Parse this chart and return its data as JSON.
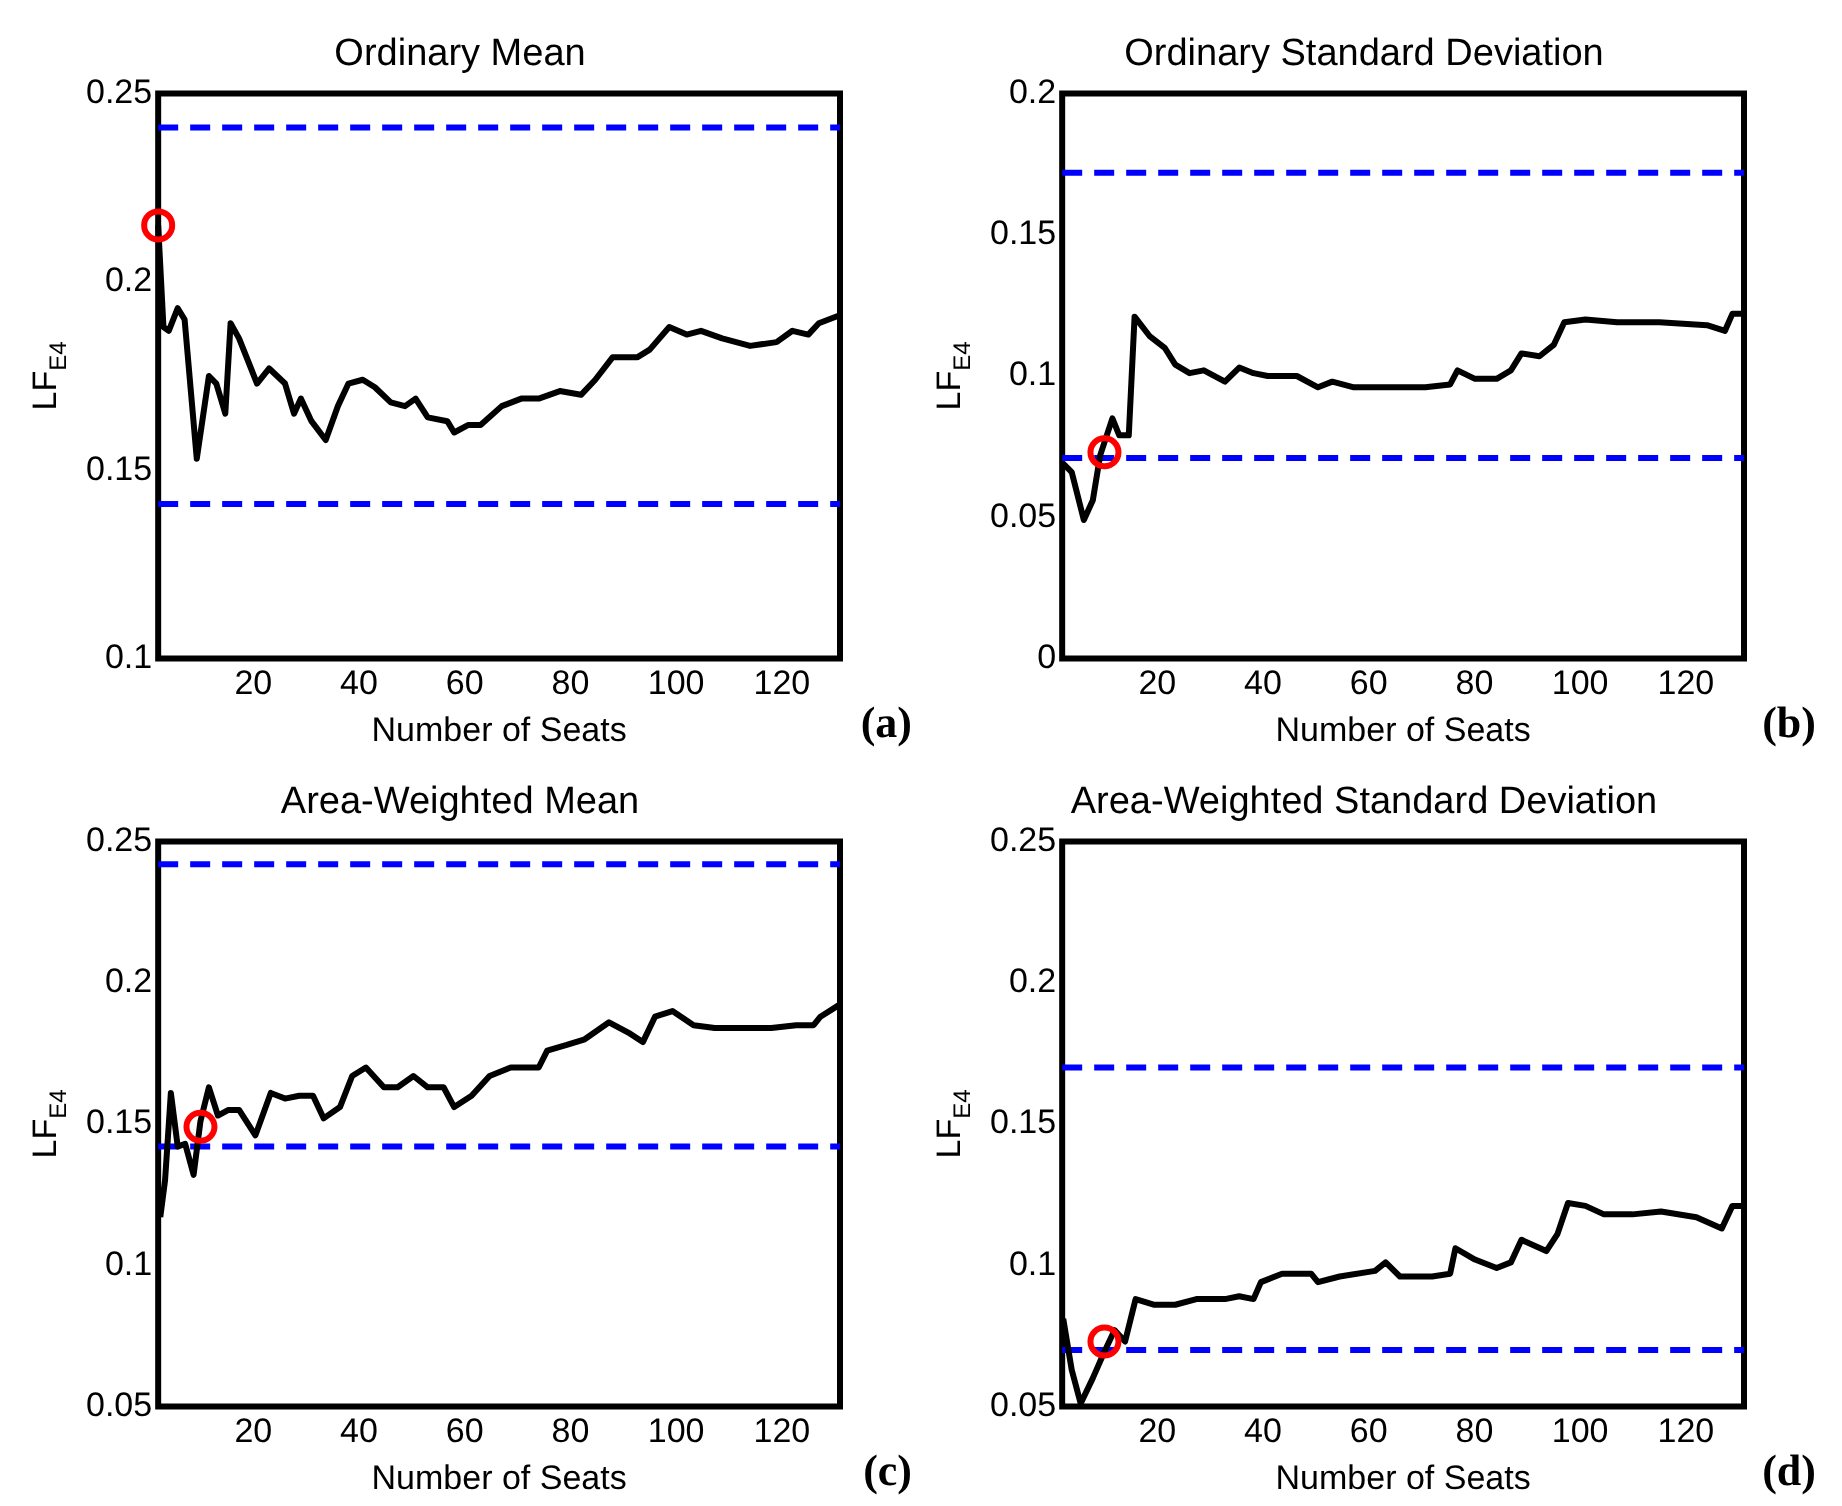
{
  "chart_data": [
    {
      "type": "line",
      "title": "Ordinary Mean",
      "xlabel": "Number of Seats",
      "ylabel": "LF$_{E4}$",
      "annotations": [
        "(a)"
      ],
      "xlim": [
        2,
        131
      ],
      "xticks": [
        20,
        40,
        60,
        80,
        100,
        120
      ],
      "ylim": [
        0.1,
        0.25
      ],
      "yticks": [
        0.1,
        0.15,
        0.2,
        0.25
      ],
      "grid": false,
      "legend": false,
      "line_style": "solid",
      "ref_lines": [
        {
          "axis": "y",
          "value": 0.241,
          "color": "#0000ff",
          "line_style": "dashed"
        },
        {
          "axis": "y",
          "value": 0.141,
          "color": "#0000ff",
          "line_style": "dashed"
        }
      ],
      "series": [
        {
          "color": "#000000",
          "x": [
            2,
            3,
            4,
            5.7,
            7,
            9.3,
            11.6,
            13,
            14.7,
            15.7,
            17.3,
            20.7,
            23,
            26,
            27.7,
            29,
            31,
            33.7,
            36,
            38,
            40.7,
            43,
            46,
            48.7,
            50.7,
            53,
            56.7,
            58,
            60.7,
            63,
            67,
            70.7,
            74,
            78,
            82,
            84.7,
            88,
            92.7,
            95,
            98.7,
            102,
            104.7,
            108.7,
            114,
            119,
            122,
            125,
            127,
            130.7
          ],
          "values": [
            0.215,
            0.188,
            0.187,
            0.193,
            0.19,
            0.153,
            0.175,
            0.173,
            0.165,
            0.189,
            0.185,
            0.173,
            0.177,
            0.173,
            0.165,
            0.169,
            0.163,
            0.158,
            0.167,
            0.173,
            0.174,
            0.172,
            0.168,
            0.167,
            0.169,
            0.164,
            0.163,
            0.16,
            0.162,
            0.162,
            0.167,
            0.169,
            0.169,
            0.171,
            0.17,
            0.174,
            0.18,
            0.18,
            0.182,
            0.188,
            0.186,
            0.187,
            0.185,
            0.183,
            0.184,
            0.187,
            0.186,
            0.189,
            0.191
          ]
        },
        {
          "type": "scatter",
          "color": "#ff0000",
          "marker": "circle",
          "x": [
            2
          ],
          "values": [
            0.215
          ]
        }
      ]
    },
    {
      "type": "line",
      "title": "Ordinary Standard Deviation",
      "xlabel": "Number of Seats",
      "ylabel": "LF$_{E4}$",
      "annotations": [
        "(b)"
      ],
      "xlim": [
        2,
        131
      ],
      "xticks": [
        20,
        40,
        60,
        80,
        100,
        120
      ],
      "ylim": [
        0,
        0.2
      ],
      "yticks": [
        0,
        0.05,
        0.1,
        0.15,
        0.2
      ],
      "grid": false,
      "legend": false,
      "line_style": "solid",
      "ref_lines": [
        {
          "axis": "y",
          "value": 0.172,
          "color": "#0000ff",
          "line_style": "dashed"
        },
        {
          "axis": "y",
          "value": 0.071,
          "color": "#0000ff",
          "line_style": "dashed"
        }
      ],
      "series": [
        {
          "color": "#000000",
          "x": [
            2.2,
            3.8,
            6.1,
            7.8,
            9.2,
            11.5,
            12.8,
            14.6,
            15.7,
            18.6,
            21.4,
            23.4,
            26.1,
            28.8,
            32.8,
            35.5,
            38.2,
            40.9,
            46.4,
            50.4,
            53.1,
            57.2,
            63.9,
            70.7,
            75.4,
            76.8,
            80.1,
            84.2,
            86.9,
            88.9,
            92.3,
            95,
            97,
            101,
            107,
            115,
            124,
            127.4,
            128.8,
            131
          ],
          "values": [
            0.069,
            0.066,
            0.049,
            0.056,
            0.072,
            0.085,
            0.079,
            0.079,
            0.121,
            0.114,
            0.11,
            0.104,
            0.101,
            0.102,
            0.098,
            0.103,
            0.101,
            0.1,
            0.1,
            0.096,
            0.098,
            0.096,
            0.096,
            0.096,
            0.097,
            0.102,
            0.099,
            0.099,
            0.102,
            0.108,
            0.107,
            0.111,
            0.119,
            0.12,
            0.119,
            0.119,
            0.118,
            0.116,
            0.122,
            0.122
          ]
        },
        {
          "type": "scatter",
          "color": "#ff0000",
          "marker": "circle",
          "x": [
            10
          ],
          "values": [
            0.073
          ]
        }
      ]
    },
    {
      "type": "line",
      "title": "Area-Weighted Mean",
      "xlabel": "Number of Seats",
      "ylabel": "LF$_{E4}$",
      "annotations": [
        "(c)"
      ],
      "xlim": [
        2,
        131
      ],
      "xticks": [
        20,
        40,
        60,
        80,
        100,
        120
      ],
      "ylim": [
        0.05,
        0.25
      ],
      "yticks": [
        0.05,
        0.1,
        0.15,
        0.2,
        0.25
      ],
      "grid": false,
      "legend": false,
      "line_style": "solid",
      "ref_lines": [
        {
          "axis": "y",
          "value": 0.242,
          "color": "#0000ff",
          "line_style": "dashed"
        },
        {
          "axis": "y",
          "value": 0.142,
          "color": "#0000ff",
          "line_style": "dashed"
        }
      ],
      "series": [
        {
          "color": "#000000",
          "x": [
            2.4,
            3.3,
            4.4,
            5.7,
            7.1,
            8.7,
            10,
            11.6,
            13.3,
            15.3,
            17.3,
            20.4,
            23.3,
            26,
            28.7,
            31.3,
            33.3,
            36.4,
            38.7,
            41.3,
            44.7,
            47.3,
            50.3,
            53,
            56,
            58,
            61.3,
            64.7,
            68.7,
            74,
            75.6,
            79.3,
            82.7,
            87.3,
            91.3,
            93.7,
            96,
            99.3,
            103.3,
            107.3,
            112.7,
            118,
            122.7,
            126,
            127.3,
            130.7
          ],
          "values": [
            0.117,
            0.13,
            0.161,
            0.142,
            0.143,
            0.132,
            0.151,
            0.163,
            0.153,
            0.155,
            0.155,
            0.146,
            0.161,
            0.159,
            0.16,
            0.16,
            0.152,
            0.156,
            0.167,
            0.17,
            0.163,
            0.163,
            0.167,
            0.163,
            0.163,
            0.156,
            0.16,
            0.167,
            0.17,
            0.17,
            0.176,
            0.178,
            0.18,
            0.186,
            0.182,
            0.179,
            0.188,
            0.19,
            0.185,
            0.184,
            0.184,
            0.184,
            0.185,
            0.185,
            0.188,
            0.192
          ]
        },
        {
          "type": "scatter",
          "color": "#ff0000",
          "marker": "circle",
          "x": [
            10
          ],
          "values": [
            0.149
          ]
        }
      ]
    },
    {
      "type": "line",
      "title": "Area-Weighted Standard Deviation",
      "xlabel": "Number of Seats",
      "ylabel": "LF$_{E4}$",
      "annotations": [
        "(d)"
      ],
      "xlim": [
        2,
        131
      ],
      "xticks": [
        20,
        40,
        60,
        80,
        100,
        120
      ],
      "ylim": [
        0.05,
        0.25
      ],
      "yticks": [
        0.05,
        0.1,
        0.15,
        0.2,
        0.25
      ],
      "grid": false,
      "legend": false,
      "line_style": "solid",
      "ref_lines": [
        {
          "axis": "y",
          "value": 0.17,
          "color": "#0000ff",
          "line_style": "dashed"
        },
        {
          "axis": "y",
          "value": 0.07,
          "color": "#0000ff",
          "line_style": "dashed"
        }
      ],
      "series": [
        {
          "color": "#000000",
          "x": [
            2.2,
            3.8,
            5.5,
            7.8,
            9.9,
            11.9,
            13.9,
            15.9,
            19.3,
            23.4,
            27.4,
            32.8,
            35.5,
            38.2,
            39.6,
            43.6,
            49.1,
            50.4,
            54.5,
            61.2,
            63.2,
            65.9,
            72,
            75.4,
            76.4,
            80.1,
            84.2,
            86.9,
            88.9,
            93.6,
            95.7,
            97.7,
            101,
            104.5,
            109.9,
            115.3,
            122,
            126.8,
            128.8,
            131
          ],
          "values": [
            0.081,
            0.063,
            0.051,
            0.06,
            0.069,
            0.077,
            0.073,
            0.088,
            0.086,
            0.086,
            0.088,
            0.088,
            0.089,
            0.088,
            0.094,
            0.097,
            0.097,
            0.094,
            0.096,
            0.098,
            0.101,
            0.096,
            0.096,
            0.097,
            0.106,
            0.102,
            0.099,
            0.101,
            0.109,
            0.105,
            0.111,
            0.122,
            0.121,
            0.118,
            0.118,
            0.119,
            0.117,
            0.113,
            0.121,
            0.121
          ]
        },
        {
          "type": "scatter",
          "color": "#ff0000",
          "marker": "circle",
          "x": [
            10
          ],
          "values": [
            0.073
          ]
        }
      ]
    }
  ]
}
